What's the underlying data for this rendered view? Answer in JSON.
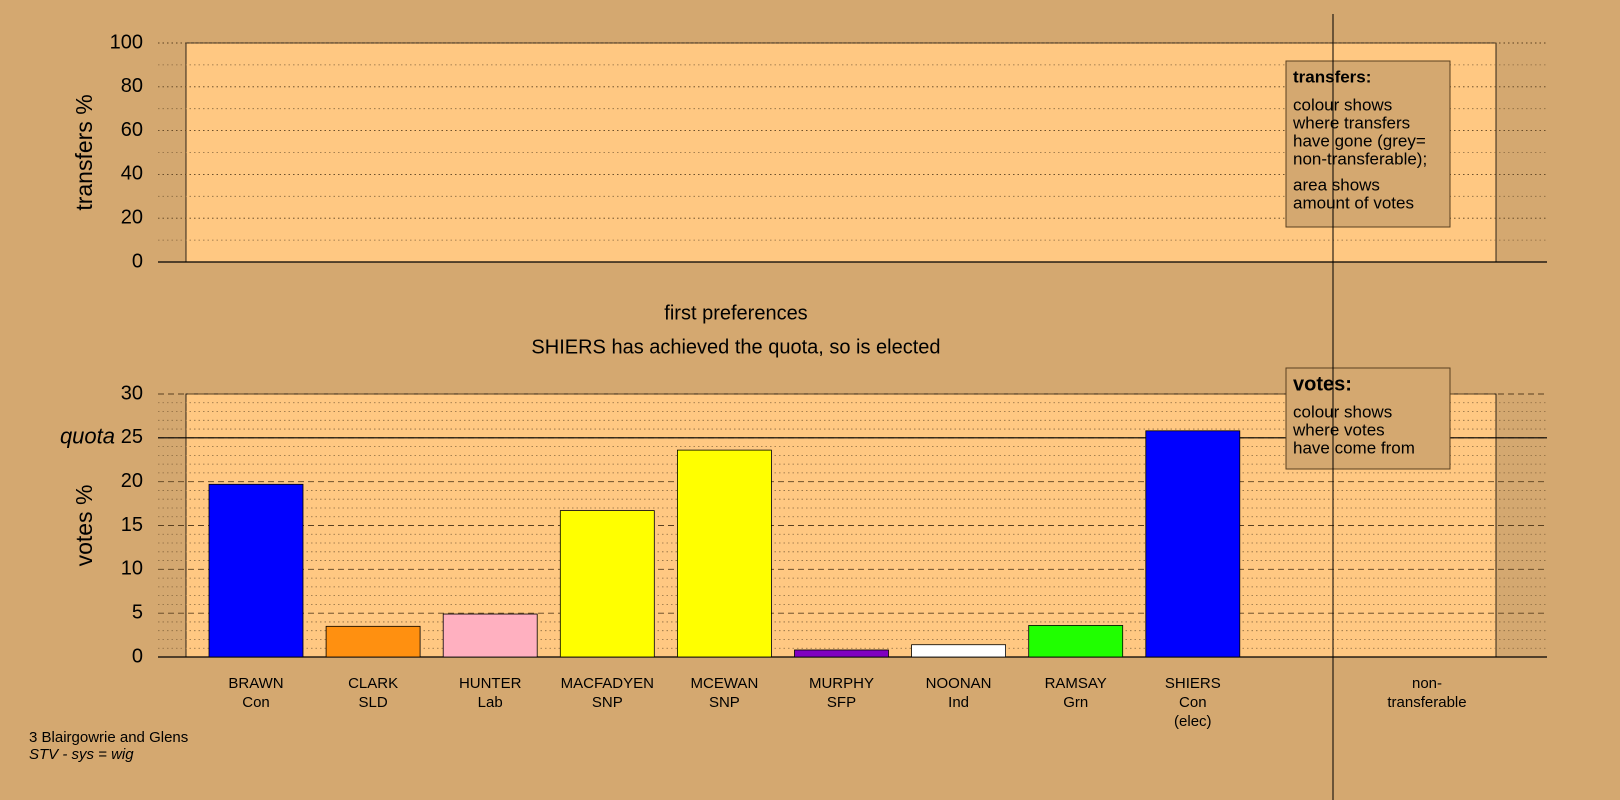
{
  "chart_data": [
    {
      "type": "bar",
      "ylabel": "transfers %",
      "ylim": [
        0,
        100
      ],
      "yticks": [
        0,
        20,
        40,
        60,
        80,
        100
      ],
      "minor_yticks": [
        10,
        30,
        50,
        70,
        90
      ],
      "grid": true,
      "note": {
        "title": "transfers:",
        "lines": [
          "colour shows",
          "where transfers",
          "have gone (grey=",
          "non-transferable);",
          "area shows",
          "amount of votes"
        ]
      }
    },
    {
      "type": "bar",
      "title": "first preferences",
      "subtitle": "SHIERS has achieved the quota, so is elected",
      "ylabel": "votes %",
      "categories": [
        "BRAWN\nCon",
        "CLARK\nSLD",
        "HUNTER\nLab",
        "MACFADYEN\nSNP",
        "MCEWAN\nSNP",
        "MURPHY\nSFP",
        "NOONAN\nInd",
        "RAMSAY\nGrn",
        "SHIERS\nCon\n(elec)",
        null,
        "non-\ntransferable"
      ],
      "values": [
        19.7,
        3.5,
        4.9,
        16.7,
        23.6,
        0.8,
        1.4,
        3.6,
        25.8,
        null,
        null
      ],
      "colors": [
        "#0000ff",
        "#ff9010",
        "#ffb0c0",
        "#ffff00",
        "#ffff00",
        "#8000c0",
        "#ffffff",
        "#20ff00",
        "#0000ff",
        null,
        null
      ],
      "ylim": [
        0,
        30
      ],
      "yticks": [
        0,
        5,
        10,
        15,
        20,
        25,
        30
      ],
      "minor_yticks": [
        1,
        2,
        3,
        4,
        6,
        7,
        8,
        9,
        11,
        12,
        13,
        14,
        16,
        17,
        18,
        19,
        21,
        22,
        23,
        24,
        26,
        27,
        28,
        29
      ],
      "grid": true,
      "quota": 25,
      "quota_label": "quota",
      "note": {
        "title": "votes:",
        "lines": [
          "colour shows",
          "where votes",
          "have come from"
        ]
      }
    }
  ],
  "footer": {
    "line1": "3 Blairgowrie and Glens",
    "line2": "STV - sys = wig"
  }
}
